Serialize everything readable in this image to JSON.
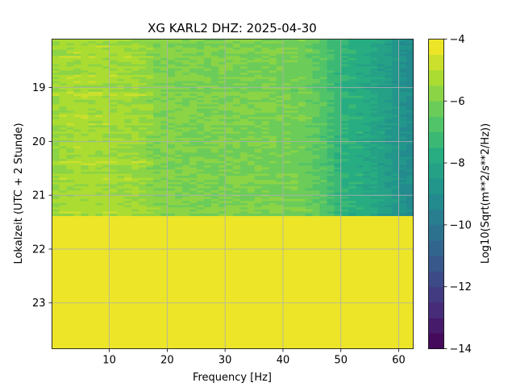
{
  "chart_data": {
    "type": "heatmap",
    "title": "XG KARL2  DHZ: 2025-04-30",
    "xlabel": "Frequency [Hz]",
    "ylabel": "Lokalzeit (UTC + 2 Stunde)",
    "xlim": [
      0.1,
      62.5
    ],
    "ylim": [
      18.1,
      23.85
    ],
    "x_ticks": [
      10,
      20,
      30,
      40,
      50,
      60
    ],
    "y_ticks": [
      19,
      20,
      21,
      22,
      23
    ],
    "grid": true,
    "data_end_hour": 21.38,
    "fill_value": -4,
    "colorbar": {
      "label": "Log10(Sqrt(m**2/s**2/Hz))",
      "range": [
        -14,
        -4
      ],
      "ticks": [
        -4,
        -6,
        -8,
        -10,
        -12,
        -14
      ],
      "levels": 20,
      "colormap": "viridis"
    },
    "spectrum_profile": {
      "frequency_hz": [
        0,
        2,
        5,
        10,
        15,
        18,
        25,
        35,
        44,
        47,
        50,
        55,
        58,
        61,
        62.5
      ],
      "log_amplitude": [
        -5.7,
        -5.4,
        -5.3,
        -5.4,
        -5.5,
        -5.9,
        -6.0,
        -6.0,
        -6.2,
        -6.7,
        -7.5,
        -7.9,
        -8.4,
        -9.0,
        -9.2
      ]
    }
  }
}
